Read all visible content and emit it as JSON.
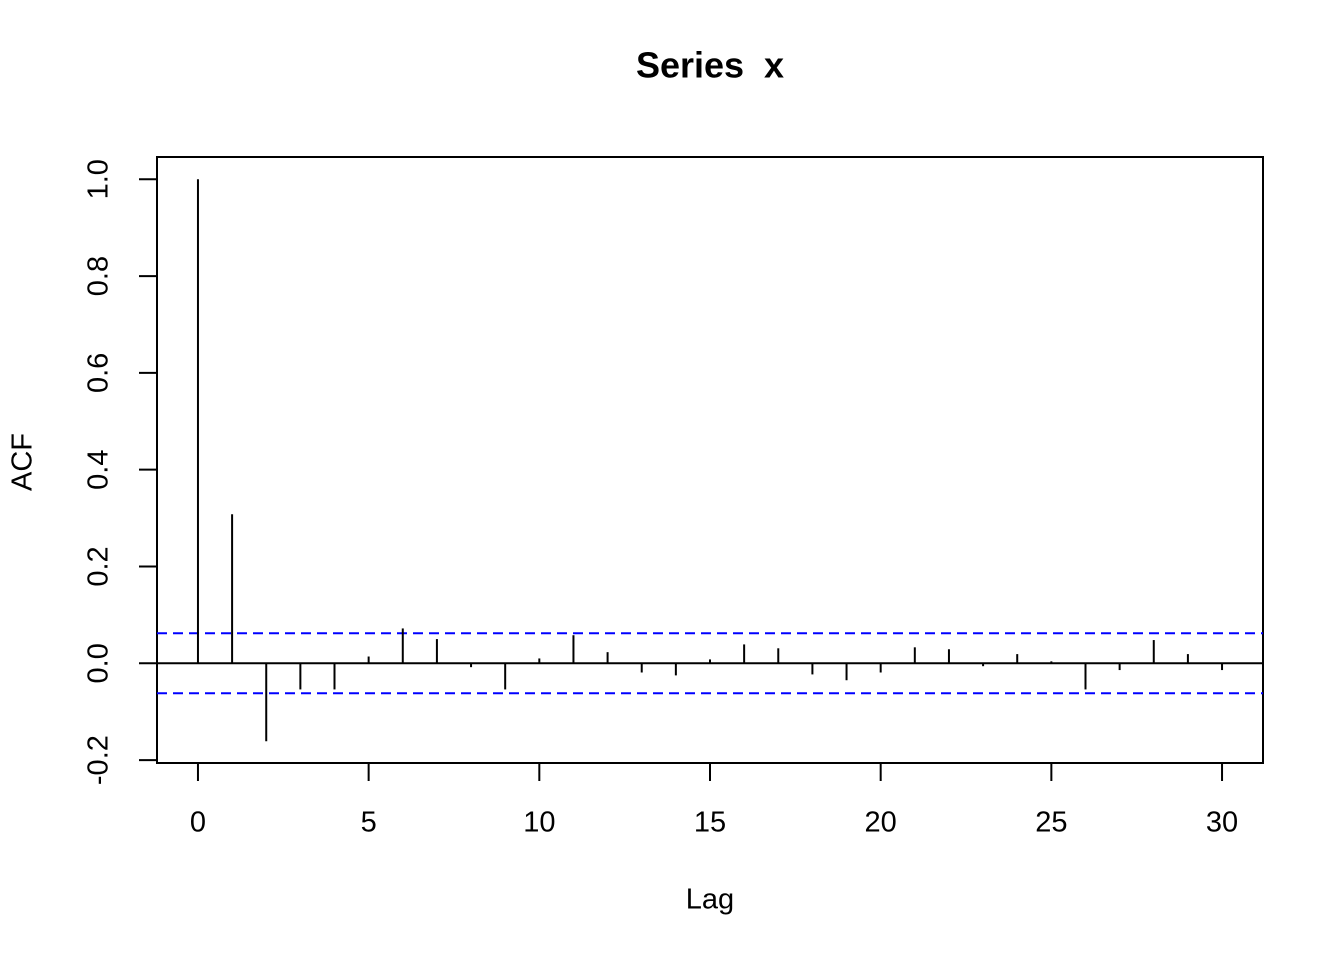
{
  "chart_data": {
    "type": "stem",
    "title": "Series  x",
    "x_label": "Lag",
    "y_label": "ACF",
    "x": [
      0,
      1,
      2,
      3,
      4,
      5,
      6,
      7,
      8,
      9,
      10,
      11,
      12,
      13,
      14,
      15,
      16,
      17,
      18,
      19,
      20,
      21,
      22,
      23,
      24,
      25,
      26,
      27,
      28,
      29,
      30
    ],
    "values": [
      1.0,
      0.308,
      -0.161,
      -0.054,
      -0.054,
      0.014,
      0.072,
      0.05,
      -0.008,
      -0.054,
      0.01,
      0.058,
      0.023,
      -0.019,
      -0.025,
      0.008,
      0.039,
      0.031,
      -0.023,
      -0.035,
      -0.019,
      0.033,
      0.029,
      -0.006,
      0.019,
      0.004,
      -0.054,
      -0.014,
      0.048,
      0.019,
      -0.014
    ],
    "color": "#000000",
    "confidence_bounds": [
      0.062,
      -0.062
    ],
    "confidence_color": "#0000ff",
    "xlim": [
      -1.2,
      31.2
    ],
    "ylim": [
      -0.206,
      1.046
    ],
    "xticks": [
      0,
      5,
      10,
      15,
      20,
      25,
      30
    ],
    "yticks": [
      -0.2,
      0.0,
      0.2,
      0.4,
      0.6,
      0.8,
      1.0
    ]
  }
}
